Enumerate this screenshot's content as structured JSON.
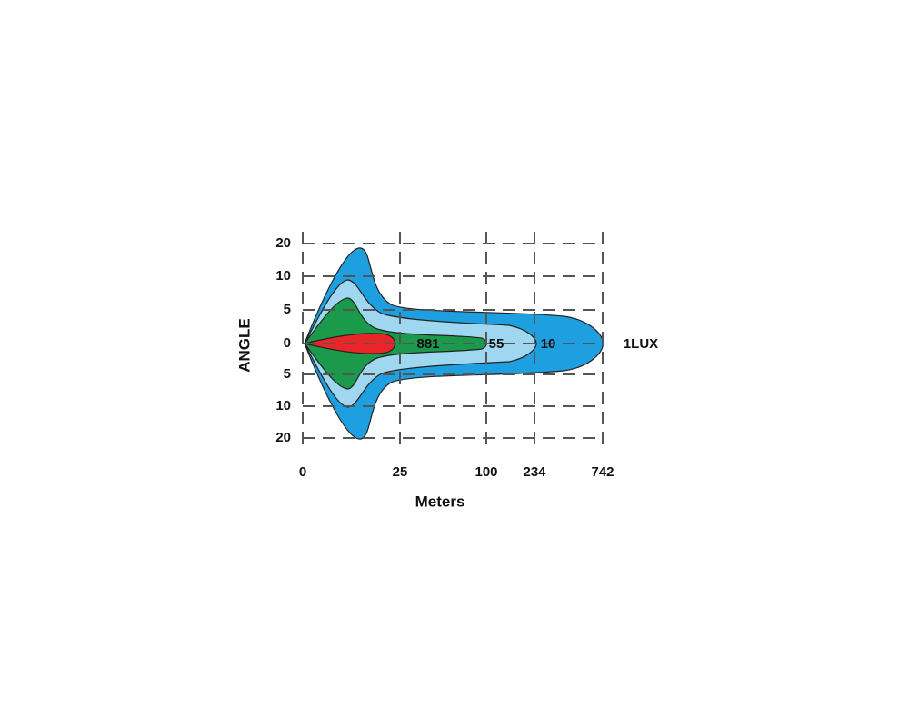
{
  "y_axis": {
    "title": "ANGLE",
    "labels": [
      "20",
      "10",
      "5",
      "0",
      "5",
      "10",
      "20"
    ]
  },
  "x_axis": {
    "title": "Meters",
    "labels": [
      "0",
      "25",
      "100",
      "234",
      "742"
    ]
  },
  "zones": {
    "labels": [
      "881",
      "55",
      "10",
      "1LUX"
    ]
  }
}
